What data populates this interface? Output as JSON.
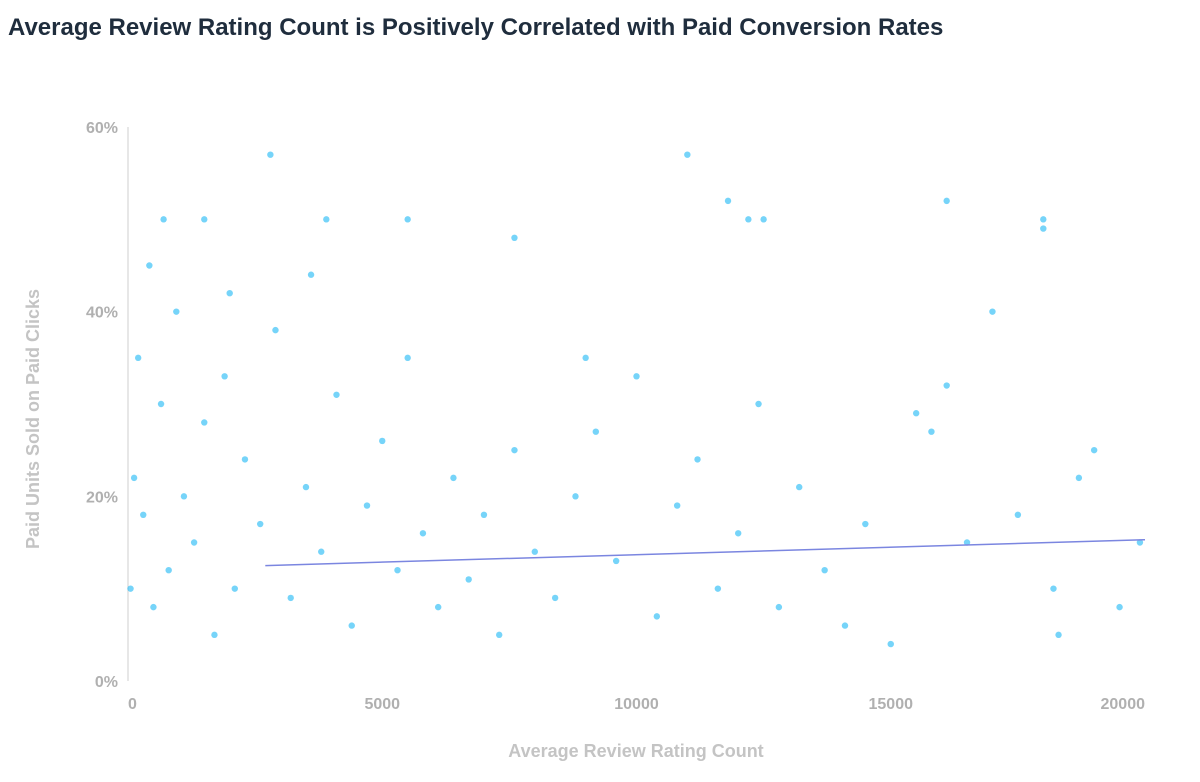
{
  "chart_data": {
    "type": "scatter",
    "title": "Average Review Rating Count is Positively Correlated with Paid Conversion Rates",
    "xlabel": "Average Review Rating Count",
    "ylabel": "Paid Units Sold on Paid Clicks",
    "xlim": [
      0,
      20000
    ],
    "ylim": [
      0,
      60
    ],
    "x_ticks": [
      "0",
      "5000",
      "10000",
      "15000",
      "20000"
    ],
    "y_ticks": [
      "0%",
      "20%",
      "40%",
      "60%"
    ],
    "grid": false,
    "point_color": "#1ab8f5",
    "trendline_color": "#7b86e0",
    "trendline": {
      "x": [
        2700,
        20000
      ],
      "y": [
        12.5,
        15.3
      ]
    },
    "points": [
      [
        50,
        10
      ],
      [
        120,
        22
      ],
      [
        200,
        35
      ],
      [
        300,
        18
      ],
      [
        420,
        45
      ],
      [
        500,
        8
      ],
      [
        650,
        30
      ],
      [
        800,
        12
      ],
      [
        950,
        40
      ],
      [
        1100,
        20
      ],
      [
        1300,
        15
      ],
      [
        1500,
        28
      ],
      [
        1700,
        5
      ],
      [
        1900,
        33
      ],
      [
        2100,
        10
      ],
      [
        2300,
        24
      ],
      [
        2600,
        17
      ],
      [
        2900,
        38
      ],
      [
        3200,
        9
      ],
      [
        3500,
        21
      ],
      [
        3800,
        14
      ],
      [
        4100,
        31
      ],
      [
        4400,
        6
      ],
      [
        4700,
        19
      ],
      [
        5000,
        26
      ],
      [
        5300,
        12
      ],
      [
        5500,
        35
      ],
      [
        5800,
        16
      ],
      [
        6100,
        8
      ],
      [
        6400,
        22
      ],
      [
        6700,
        11
      ],
      [
        7000,
        18
      ],
      [
        7300,
        5
      ],
      [
        7600,
        25
      ],
      [
        8000,
        14
      ],
      [
        8400,
        9
      ],
      [
        8800,
        20
      ],
      [
        9200,
        27
      ],
      [
        9600,
        13
      ],
      [
        10000,
        33
      ],
      [
        10400,
        7
      ],
      [
        10800,
        19
      ],
      [
        11200,
        24
      ],
      [
        11600,
        10
      ],
      [
        12000,
        16
      ],
      [
        12400,
        30
      ],
      [
        12800,
        8
      ],
      [
        13200,
        21
      ],
      [
        13700,
        12
      ],
      [
        14100,
        6
      ],
      [
        14500,
        17
      ],
      [
        15000,
        4
      ],
      [
        15500,
        29
      ],
      [
        15800,
        27
      ],
      [
        16100,
        32
      ],
      [
        16500,
        15
      ],
      [
        17000,
        40
      ],
      [
        17500,
        18
      ],
      [
        18000,
        49
      ],
      [
        18200,
        10
      ],
      [
        18300,
        5
      ],
      [
        18700,
        22
      ],
      [
        19000,
        25
      ],
      [
        19500,
        8
      ],
      [
        19900,
        15
      ],
      [
        5500,
        50
      ],
      [
        3900,
        50
      ],
      [
        2800,
        57
      ],
      [
        700,
        50
      ],
      [
        1500,
        50
      ],
      [
        11000,
        57
      ],
      [
        11800,
        52
      ],
      [
        16100,
        52
      ],
      [
        18000,
        50
      ],
      [
        12200,
        50
      ],
      [
        12500,
        50
      ],
      [
        2000,
        42
      ],
      [
        3600,
        44
      ],
      [
        7600,
        48
      ],
      [
        9000,
        35
      ]
    ]
  }
}
